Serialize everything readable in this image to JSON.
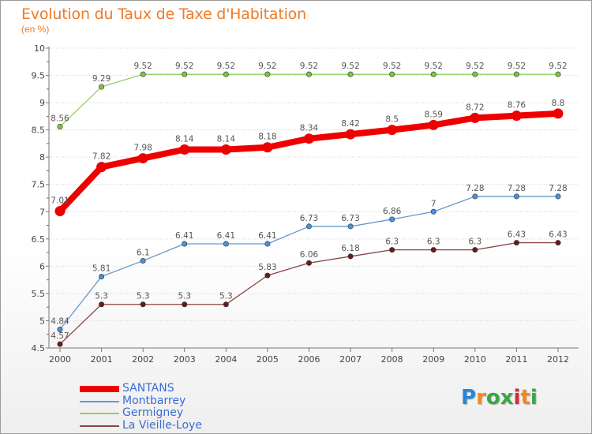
{
  "header": {
    "title": "Evolution du Taux de Taxe d'Habitation",
    "unit": "(en %)"
  },
  "logo": {
    "letters": [
      "P",
      "r",
      "o",
      "x",
      "i",
      "t",
      "i"
    ],
    "colors": [
      "#2a86d2",
      "#f08a1c",
      "#3aa64a",
      "#3aa64a",
      "#d22c2c",
      "#f08a1c",
      "#3aa64a"
    ]
  },
  "chart_data": {
    "type": "line",
    "title": "Evolution du Taux de Taxe d'Habitation",
    "ylabel": "(en %)",
    "xlabel": "",
    "x": [
      "2000",
      "2001",
      "2002",
      "2003",
      "2004",
      "2005",
      "2006",
      "2007",
      "2008",
      "2009",
      "2010",
      "2011",
      "2012"
    ],
    "ylim": [
      4.5,
      10
    ],
    "yticks": [
      "4.5",
      "5",
      "5.5",
      "6",
      "6.5",
      "7",
      "7.5",
      "8",
      "8.5",
      "9",
      "9.5",
      "10"
    ],
    "grid": "horizontal dotted",
    "legend_position": "bottom-left",
    "series": [
      {
        "name": "SANTANS",
        "color": "#ee0000",
        "emphasis": true,
        "values": [
          7.01,
          7.82,
          7.98,
          8.14,
          8.14,
          8.18,
          8.34,
          8.42,
          8.5,
          8.59,
          8.72,
          8.76,
          8.8
        ],
        "labels": [
          "7.01",
          "7.82",
          "7.98",
          "8.14",
          "8.14",
          "8.18",
          "8.34",
          "8.42",
          "8.5",
          "8.59",
          "8.72",
          "8.76",
          "8.8"
        ]
      },
      {
        "name": "Montbarrey",
        "color": "#6699cc",
        "marker": "#4a90d9",
        "values": [
          4.84,
          5.81,
          6.1,
          6.41,
          6.41,
          6.41,
          6.73,
          6.73,
          6.86,
          7,
          7.28,
          7.28,
          7.28
        ],
        "labels": [
          "4.84",
          "5.81",
          "6.1",
          "6.41",
          "6.41",
          "6.41",
          "6.73",
          "6.73",
          "6.86",
          "7",
          "7.28",
          "7.28",
          "7.28"
        ]
      },
      {
        "name": "Germigney",
        "color": "#99cc66",
        "marker": "#7cc444",
        "values": [
          8.56,
          9.29,
          9.52,
          9.52,
          9.52,
          9.52,
          9.52,
          9.52,
          9.52,
          9.52,
          9.52,
          9.52,
          9.52
        ],
        "labels": [
          "8.56",
          "9.29",
          "9.52",
          "9.52",
          "9.52",
          "9.52",
          "9.52",
          "9.52",
          "9.52",
          "9.52",
          "9.52",
          "9.52",
          "9.52"
        ]
      },
      {
        "name": "La Vieille-Loye",
        "color": "#884444",
        "marker": "#6b1a1a",
        "values": [
          4.57,
          5.3,
          5.3,
          5.3,
          5.3,
          5.83,
          6.06,
          6.18,
          6.3,
          6.3,
          6.3,
          6.43,
          6.43
        ],
        "labels": [
          "4.57",
          "5.3",
          "5.3",
          "5.3",
          "5.3",
          "5.83",
          "6.06",
          "6.18",
          "6.3",
          "6.3",
          "6.3",
          "6.43",
          "6.43"
        ]
      }
    ]
  }
}
